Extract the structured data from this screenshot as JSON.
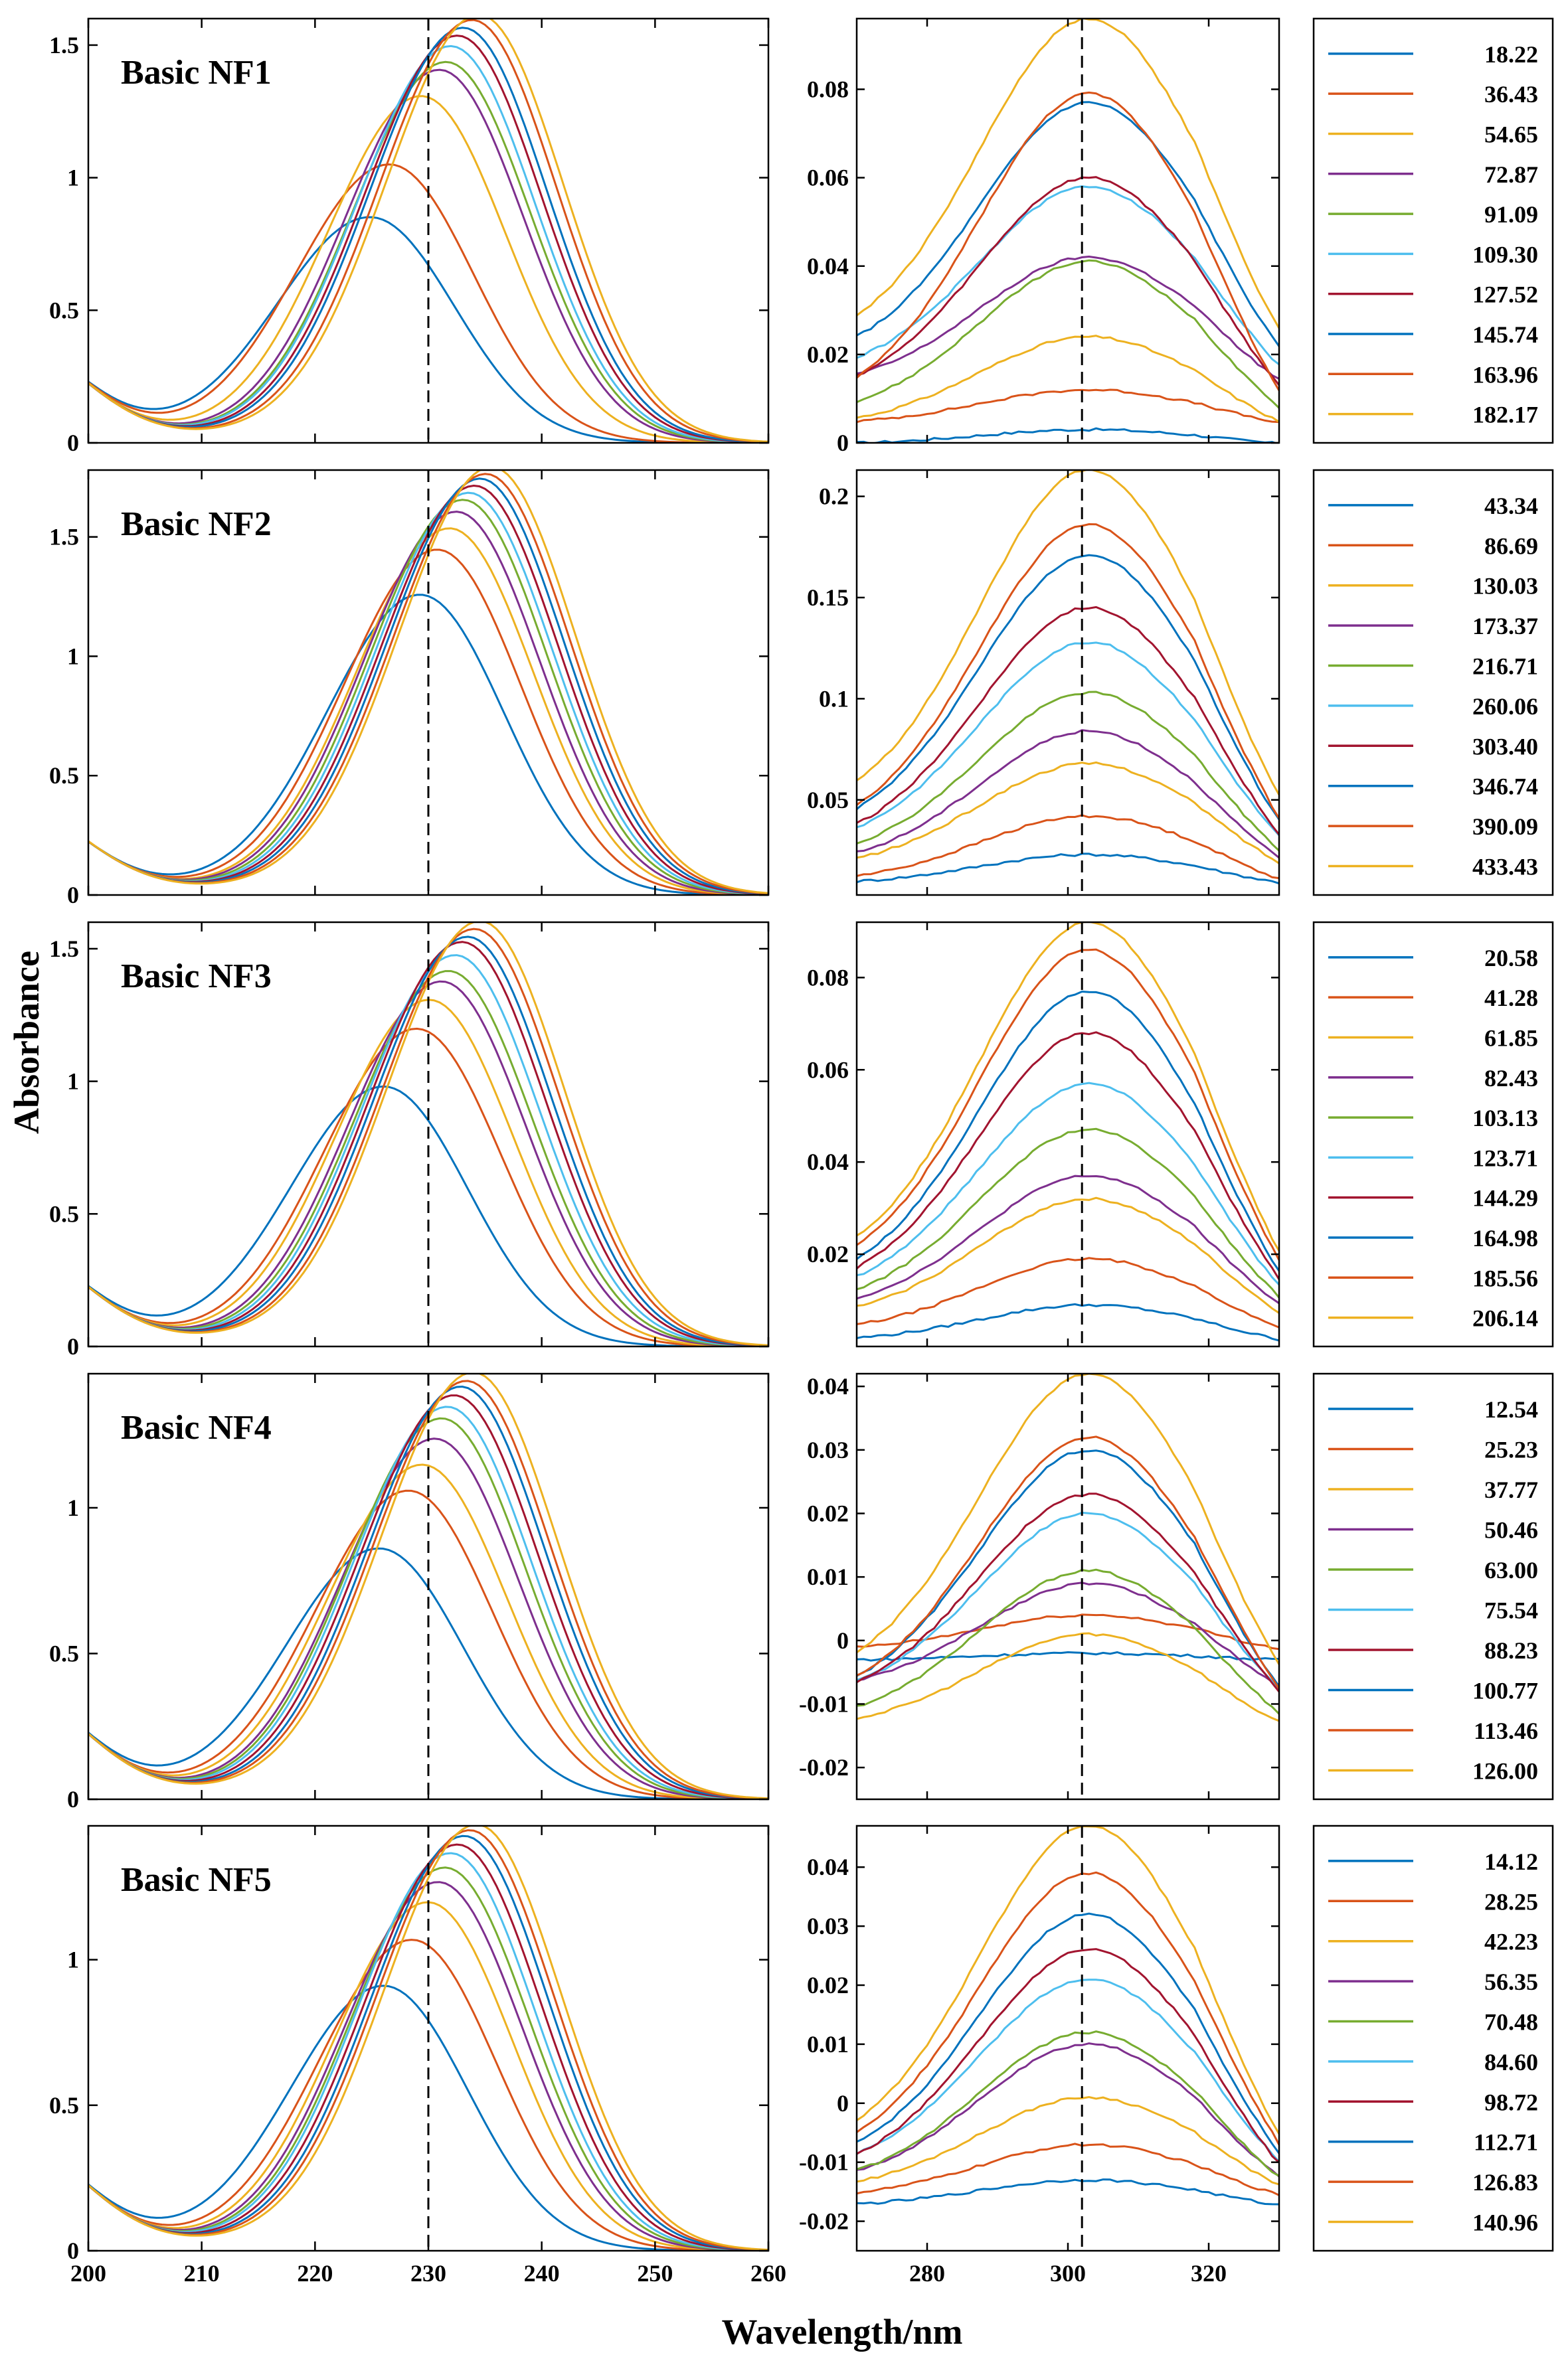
{
  "figure": {
    "ylabel": "Absorbance",
    "xlabel": "Wavelength/nm",
    "colors": [
      "#0072BD",
      "#D95319",
      "#EDB120",
      "#7E2F8E",
      "#77AC30",
      "#4DBEEE",
      "#A2142F",
      "#0072BD",
      "#D95319",
      "#EDB120"
    ],
    "dashed_left_x": 230,
    "dashed_right_x": 302
  },
  "chart_data": [
    {
      "type": "line",
      "title": "Basic NF1",
      "legend": [
        "18.22",
        "36.43",
        "54.65",
        "72.87",
        "91.09",
        "109.30",
        "127.52",
        "145.74",
        "163.96",
        "182.17"
      ],
      "left": {
        "xlim": [
          200,
          260
        ],
        "ylim": [
          0,
          1.6
        ],
        "yticks": [
          "0",
          "0.5",
          "1",
          "1.5"
        ],
        "ytick_values": [
          0,
          0.5,
          1,
          1.5
        ],
        "peaks_x": [
          224.9,
          226.6,
          229.4,
          231.0,
          231.6,
          232.0,
          232.6,
          233.1,
          233.9,
          234.5
        ],
        "peaks_y": [
          0.84,
          1.04,
          1.3,
          1.4,
          1.43,
          1.49,
          1.53,
          1.56,
          1.59,
          1.61
        ]
      },
      "right": {
        "xlim": [
          270,
          330
        ],
        "ylim": [
          0,
          0.096
        ],
        "yticks": [
          "0",
          "0.02",
          "0.04",
          "0.06",
          "0.08"
        ],
        "ytick_values": [
          0,
          0.02,
          0.04,
          0.06,
          0.08
        ],
        "peak_y": [
          0.003,
          0.012,
          0.024,
          0.042,
          0.041,
          0.058,
          0.06,
          0.077,
          0.079,
          0.096
        ],
        "edge_y": [
          0.0,
          0.005,
          0.006,
          0.016,
          0.01,
          0.02,
          0.016,
          0.025,
          0.016,
          0.03
        ]
      }
    },
    {
      "type": "line",
      "title": "Basic NF2",
      "legend": [
        "43.34",
        "86.69",
        "130.03",
        "173.37",
        "216.71",
        "260.06",
        "303.40",
        "346.74",
        "390.09",
        "433.43"
      ],
      "left": {
        "xlim": [
          200,
          260
        ],
        "ylim": [
          0,
          1.78
        ],
        "yticks": [
          "0",
          "0.5",
          "1",
          "1.5"
        ],
        "ytick_values": [
          0,
          0.5,
          1,
          1.5
        ],
        "peaks_x": [
          229.3,
          230.8,
          231.9,
          232.5,
          233.1,
          233.6,
          234.1,
          234.6,
          235.1,
          235.6
        ],
        "peaks_y": [
          1.25,
          1.44,
          1.53,
          1.6,
          1.65,
          1.68,
          1.71,
          1.74,
          1.76,
          1.79
        ]
      },
      "right": {
        "xlim": [
          270,
          330
        ],
        "ylim": [
          0.003,
          0.213
        ],
        "yticks": [
          "0.05",
          "0.1",
          "0.15",
          "0.2"
        ],
        "ytick_values": [
          0.05,
          0.1,
          0.15,
          0.2
        ],
        "peak_y": [
          0.023,
          0.042,
          0.068,
          0.084,
          0.103,
          0.128,
          0.145,
          0.171,
          0.186,
          0.213
        ],
        "edge_y": [
          0.01,
          0.013,
          0.022,
          0.025,
          0.03,
          0.038,
          0.04,
          0.048,
          0.05,
          0.062
        ]
      }
    },
    {
      "type": "line",
      "title": "Basic NF3",
      "legend": [
        "20.58",
        "41.28",
        "61.85",
        "82.43",
        "103.13",
        "123.71",
        "144.29",
        "164.98",
        "185.56",
        "206.14"
      ],
      "left": {
        "xlim": [
          200,
          260
        ],
        "ylim": [
          0,
          1.6
        ],
        "yticks": [
          "0",
          "0.5",
          "1",
          "1.5"
        ],
        "ytick_values": [
          0,
          0.5,
          1,
          1.5
        ],
        "peaks_x": [
          226.1,
          229.0,
          230.1,
          231.2,
          231.8,
          232.4,
          233.0,
          233.5,
          234.1,
          234.6
        ],
        "peaks_y": [
          0.97,
          1.19,
          1.3,
          1.37,
          1.41,
          1.47,
          1.52,
          1.54,
          1.57,
          1.6
        ]
      },
      "right": {
        "xlim": [
          270,
          330
        ],
        "ylim": [
          0,
          0.092
        ],
        "yticks": [
          "0.02",
          "0.04",
          "0.06",
          "0.08"
        ],
        "ytick_values": [
          0.02,
          0.04,
          0.06,
          0.08
        ],
        "peak_y": [
          0.009,
          0.019,
          0.032,
          0.037,
          0.047,
          0.057,
          0.068,
          0.077,
          0.086,
          0.092
        ],
        "edge_y": [
          0.002,
          0.005,
          0.009,
          0.011,
          0.013,
          0.016,
          0.018,
          0.02,
          0.023,
          0.025
        ]
      }
    },
    {
      "type": "line",
      "title": "Basic NF4",
      "legend": [
        "12.54",
        "25.23",
        "37.77",
        "50.46",
        "63.00",
        "75.54",
        "88.23",
        "100.77",
        "113.46",
        "126.00"
      ],
      "left": {
        "xlim": [
          200,
          260
        ],
        "ylim": [
          0,
          1.46
        ],
        "yticks": [
          "0",
          "0.5",
          "1"
        ],
        "ytick_values": [
          0,
          0.5,
          1
        ],
        "peaks_x": [
          225.7,
          228.3,
          229.5,
          230.6,
          231.2,
          231.7,
          232.3,
          232.9,
          233.4,
          234.0
        ],
        "peaks_y": [
          0.85,
          1.05,
          1.14,
          1.23,
          1.3,
          1.34,
          1.38,
          1.41,
          1.43,
          1.46
        ]
      },
      "right": {
        "xlim": [
          270,
          330
        ],
        "ylim": [
          -0.025,
          0.042
        ],
        "yticks": [
          "-0.02",
          "-0.01",
          "0",
          "0.01",
          "0.02",
          "0.03",
          "0.04"
        ],
        "ytick_values": [
          -0.02,
          -0.01,
          0,
          0.01,
          0.02,
          0.03,
          0.04
        ],
        "peak_y": [
          -0.002,
          0.004,
          0.001,
          0.009,
          0.011,
          0.02,
          0.023,
          0.03,
          0.032,
          0.042
        ],
        "edge_y": [
          -0.003,
          -0.001,
          -0.012,
          -0.006,
          -0.01,
          -0.006,
          -0.006,
          -0.005,
          -0.005,
          -0.001
        ]
      }
    },
    {
      "type": "line",
      "title": "Basic NF5",
      "legend": [
        "14.12",
        "28.25",
        "42.23",
        "56.35",
        "70.48",
        "84.60",
        "98.72",
        "112.71",
        "126.83",
        "140.96"
      ],
      "left": {
        "xlim": [
          200,
          260
        ],
        "ylim": [
          0,
          1.46
        ],
        "yticks": [
          "0",
          "0.5",
          "1"
        ],
        "ytick_values": [
          0,
          0.5,
          1
        ],
        "peaks_x": [
          226.1,
          228.6,
          230.0,
          230.9,
          231.5,
          232.0,
          232.6,
          233.2,
          233.7,
          234.3
        ],
        "peaks_y": [
          0.9,
          1.06,
          1.19,
          1.26,
          1.31,
          1.36,
          1.39,
          1.42,
          1.44,
          1.46
        ]
      },
      "right": {
        "xlim": [
          270,
          330
        ],
        "ylim": [
          -0.025,
          0.047
        ],
        "yticks": [
          "-0.02",
          "-0.01",
          "0",
          "0.01",
          "0.02",
          "0.03",
          "0.04"
        ],
        "ytick_values": [
          -0.02,
          -0.01,
          0,
          0.01,
          0.02,
          0.03,
          0.04
        ],
        "peak_y": [
          -0.013,
          -0.007,
          0.001,
          0.01,
          0.012,
          0.021,
          0.026,
          0.032,
          0.039,
          0.047
        ],
        "edge_y": [
          -0.017,
          -0.015,
          -0.013,
          -0.011,
          -0.011,
          -0.008,
          -0.008,
          -0.006,
          -0.004,
          -0.002
        ]
      }
    }
  ],
  "shared_x": {
    "left_ticks": [
      "200",
      "210",
      "220",
      "230",
      "240",
      "250",
      "260"
    ],
    "left_tick_values": [
      200,
      210,
      220,
      230,
      240,
      250,
      260
    ],
    "right_ticks": [
      "280",
      "300",
      "320"
    ],
    "right_tick_values": [
      280,
      300,
      320
    ]
  }
}
